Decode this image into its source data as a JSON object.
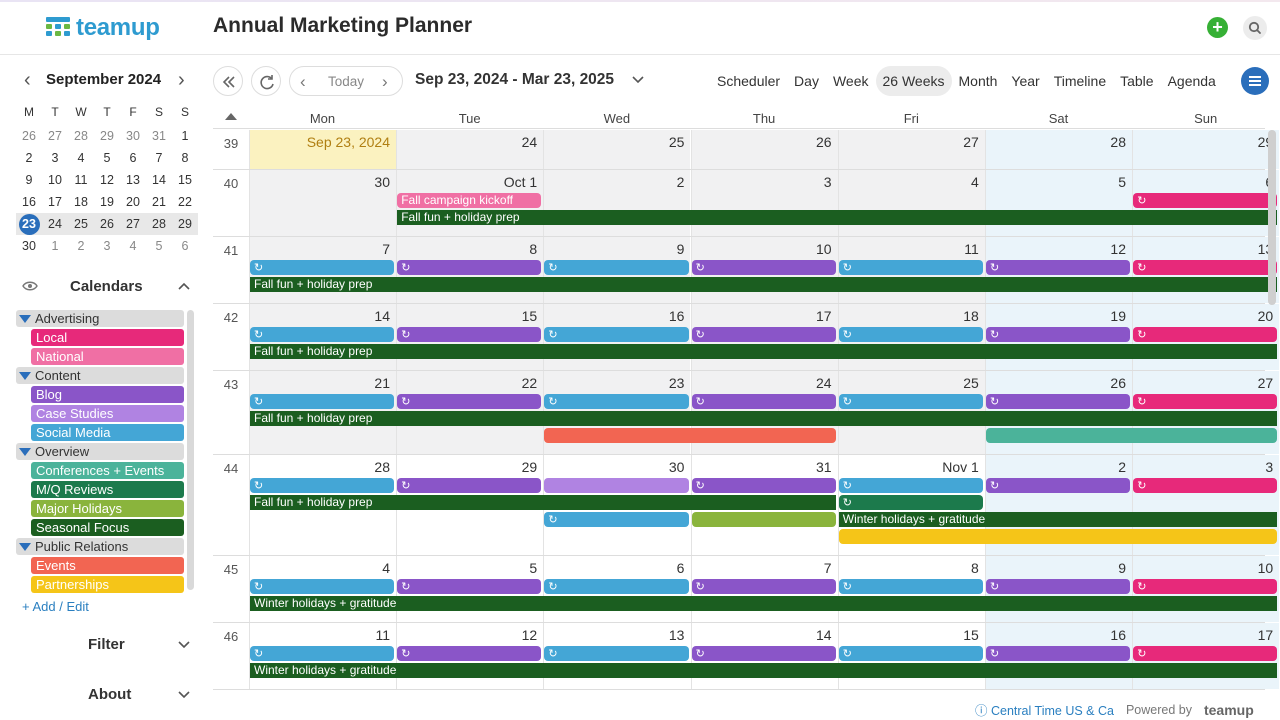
{
  "app": {
    "brand": "teamup",
    "title": "Annual Marketing Planner"
  },
  "sidebar": {
    "month_label": "September 2024",
    "weekday_heads": [
      "M",
      "T",
      "W",
      "T",
      "F",
      "S",
      "S"
    ],
    "weeks": [
      [
        {
          "d": "26"
        },
        {
          "d": "27"
        },
        {
          "d": "28"
        },
        {
          "d": "29"
        },
        {
          "d": "30"
        },
        {
          "d": "31"
        },
        {
          "d": "1"
        }
      ],
      [
        {
          "d": "2"
        },
        {
          "d": "3"
        },
        {
          "d": "4"
        },
        {
          "d": "5"
        },
        {
          "d": "6"
        },
        {
          "d": "7"
        },
        {
          "d": "8"
        }
      ],
      [
        {
          "d": "9"
        },
        {
          "d": "10"
        },
        {
          "d": "11"
        },
        {
          "d": "12"
        },
        {
          "d": "13"
        },
        {
          "d": "14"
        },
        {
          "d": "15"
        }
      ],
      [
        {
          "d": "16"
        },
        {
          "d": "17"
        },
        {
          "d": "18"
        },
        {
          "d": "19"
        },
        {
          "d": "20"
        },
        {
          "d": "21"
        },
        {
          "d": "22"
        }
      ],
      [
        {
          "d": "23"
        },
        {
          "d": "24"
        },
        {
          "d": "25"
        },
        {
          "d": "26"
        },
        {
          "d": "27"
        },
        {
          "d": "28"
        },
        {
          "d": "29"
        }
      ],
      [
        {
          "d": "30"
        },
        {
          "d": "1"
        },
        {
          "d": "2"
        },
        {
          "d": "3"
        },
        {
          "d": "4"
        },
        {
          "d": "5"
        },
        {
          "d": "6"
        }
      ]
    ],
    "today_day": "23",
    "calendars_title": "Calendars",
    "groups": [
      {
        "name": "Advertising",
        "items": [
          {
            "name": "Local",
            "color": "#e7297a"
          },
          {
            "name": "National",
            "color": "#f06fa4"
          }
        ]
      },
      {
        "name": "Content",
        "items": [
          {
            "name": "Blog",
            "color": "#8a55c8"
          },
          {
            "name": "Case Studies",
            "color": "#b083e2"
          },
          {
            "name": "Social Media",
            "color": "#44a6d6"
          }
        ]
      },
      {
        "name": "Overview",
        "items": [
          {
            "name": "Conferences + Events",
            "color": "#4bb39a"
          },
          {
            "name": "M/Q Reviews",
            "color": "#1c7a4c"
          },
          {
            "name": "Major Holidays",
            "color": "#8ab43c"
          },
          {
            "name": "Seasonal Focus",
            "color": "#1b5e20"
          }
        ]
      },
      {
        "name": "Public Relations",
        "items": [
          {
            "name": "Events",
            "color": "#f26552"
          },
          {
            "name": "Partnerships",
            "color": "#f5c518"
          }
        ]
      }
    ],
    "add_edit": "Add / Edit",
    "filter_label": "Filter",
    "about_label": "About"
  },
  "toolbar": {
    "today": "Today",
    "range": "Sep 23, 2024 - Mar 23, 2025",
    "views": [
      "Scheduler",
      "Day",
      "Week",
      "26 Weeks",
      "Month",
      "Year",
      "Timeline",
      "Table",
      "Agenda"
    ],
    "active_view": "26 Weeks"
  },
  "calendar": {
    "day_heads": [
      "Mon",
      "Tue",
      "Wed",
      "Thu",
      "Fri",
      "Sat",
      "Sun"
    ],
    "weeks": [
      {
        "wk": "39",
        "days": [
          "Sep 23, 2024",
          "24",
          "25",
          "26",
          "27",
          "28",
          "29"
        ]
      },
      {
        "wk": "40",
        "days": [
          "30",
          "Oct 1",
          "2",
          "3",
          "4",
          "5",
          "6"
        ]
      },
      {
        "wk": "41",
        "days": [
          "7",
          "8",
          "9",
          "10",
          "11",
          "12",
          "13"
        ]
      },
      {
        "wk": "42",
        "days": [
          "14",
          "15",
          "16",
          "17",
          "18",
          "19",
          "20"
        ]
      },
      {
        "wk": "43",
        "days": [
          "21",
          "22",
          "23",
          "24",
          "25",
          "26",
          "27"
        ]
      },
      {
        "wk": "44",
        "days": [
          "28",
          "29",
          "30",
          "31",
          "Nov 1",
          "2",
          "3"
        ]
      },
      {
        "wk": "45",
        "days": [
          "4",
          "5",
          "6",
          "7",
          "8",
          "9",
          "10"
        ]
      },
      {
        "wk": "46",
        "days": [
          "11",
          "12",
          "13",
          "14",
          "15",
          "16",
          "17"
        ]
      }
    ],
    "events": [
      {
        "week": 1,
        "start": 1,
        "span": 1,
        "lane": 0,
        "title": "Fall campaign kickoff",
        "color": "#f06fa4",
        "repeat": false
      },
      {
        "week": 1,
        "start": 6,
        "span": 1,
        "lane": 0,
        "title": "",
        "color": "#e7297a",
        "repeat": true
      },
      {
        "week": 1,
        "start": 1,
        "span": 6,
        "lane": 1,
        "title": "Fall fun + holiday prep",
        "color": "#1b5e20",
        "repeat": false,
        "bar": true
      },
      {
        "week": 2,
        "start": 0,
        "span": 1,
        "lane": 0,
        "title": "",
        "color": "#44a6d6",
        "repeat": true
      },
      {
        "week": 2,
        "start": 1,
        "span": 1,
        "lane": 0,
        "title": "",
        "color": "#8a55c8",
        "repeat": true
      },
      {
        "week": 2,
        "start": 2,
        "span": 1,
        "lane": 0,
        "title": "",
        "color": "#44a6d6",
        "repeat": true
      },
      {
        "week": 2,
        "start": 3,
        "span": 1,
        "lane": 0,
        "title": "",
        "color": "#8a55c8",
        "repeat": true
      },
      {
        "week": 2,
        "start": 4,
        "span": 1,
        "lane": 0,
        "title": "",
        "color": "#44a6d6",
        "repeat": true
      },
      {
        "week": 2,
        "start": 5,
        "span": 1,
        "lane": 0,
        "title": "",
        "color": "#8a55c8",
        "repeat": true
      },
      {
        "week": 2,
        "start": 6,
        "span": 1,
        "lane": 0,
        "title": "",
        "color": "#e7297a",
        "repeat": true
      },
      {
        "week": 2,
        "start": 0,
        "span": 7,
        "lane": 1,
        "title": "Fall fun + holiday prep",
        "color": "#1b5e20",
        "repeat": false,
        "bar": true
      },
      {
        "week": 3,
        "start": 0,
        "span": 1,
        "lane": 0,
        "title": "",
        "color": "#44a6d6",
        "repeat": true
      },
      {
        "week": 3,
        "start": 1,
        "span": 1,
        "lane": 0,
        "title": "",
        "color": "#8a55c8",
        "repeat": true
      },
      {
        "week": 3,
        "start": 2,
        "span": 1,
        "lane": 0,
        "title": "",
        "color": "#44a6d6",
        "repeat": true
      },
      {
        "week": 3,
        "start": 3,
        "span": 1,
        "lane": 0,
        "title": "",
        "color": "#8a55c8",
        "repeat": true
      },
      {
        "week": 3,
        "start": 4,
        "span": 1,
        "lane": 0,
        "title": "",
        "color": "#44a6d6",
        "repeat": true
      },
      {
        "week": 3,
        "start": 5,
        "span": 1,
        "lane": 0,
        "title": "",
        "color": "#8a55c8",
        "repeat": true
      },
      {
        "week": 3,
        "start": 6,
        "span": 1,
        "lane": 0,
        "title": "",
        "color": "#e7297a",
        "repeat": true
      },
      {
        "week": 3,
        "start": 0,
        "span": 7,
        "lane": 1,
        "title": "Fall fun + holiday prep",
        "color": "#1b5e20",
        "repeat": false,
        "bar": true
      },
      {
        "week": 4,
        "start": 0,
        "span": 1,
        "lane": 0,
        "title": "",
        "color": "#44a6d6",
        "repeat": true
      },
      {
        "week": 4,
        "start": 1,
        "span": 1,
        "lane": 0,
        "title": "",
        "color": "#8a55c8",
        "repeat": true
      },
      {
        "week": 4,
        "start": 2,
        "span": 1,
        "lane": 0,
        "title": "",
        "color": "#44a6d6",
        "repeat": true
      },
      {
        "week": 4,
        "start": 3,
        "span": 1,
        "lane": 0,
        "title": "",
        "color": "#8a55c8",
        "repeat": true
      },
      {
        "week": 4,
        "start": 4,
        "span": 1,
        "lane": 0,
        "title": "",
        "color": "#44a6d6",
        "repeat": true
      },
      {
        "week": 4,
        "start": 5,
        "span": 1,
        "lane": 0,
        "title": "",
        "color": "#8a55c8",
        "repeat": true
      },
      {
        "week": 4,
        "start": 6,
        "span": 1,
        "lane": 0,
        "title": "",
        "color": "#e7297a",
        "repeat": true
      },
      {
        "week": 4,
        "start": 0,
        "span": 7,
        "lane": 1,
        "title": "Fall fun + holiday prep",
        "color": "#1b5e20",
        "repeat": false,
        "bar": true
      },
      {
        "week": 4,
        "start": 2,
        "span": 2,
        "lane": 2,
        "title": "",
        "color": "#f26552",
        "repeat": false
      },
      {
        "week": 4,
        "start": 5,
        "span": 2,
        "lane": 2,
        "title": "",
        "color": "#4bb39a",
        "repeat": false
      },
      {
        "week": 5,
        "start": 0,
        "span": 1,
        "lane": 0,
        "title": "",
        "color": "#44a6d6",
        "repeat": true
      },
      {
        "week": 5,
        "start": 1,
        "span": 1,
        "lane": 0,
        "title": "",
        "color": "#8a55c8",
        "repeat": true
      },
      {
        "week": 5,
        "start": 2,
        "span": 1,
        "lane": 0,
        "title": "",
        "color": "#b083e2",
        "repeat": false
      },
      {
        "week": 5,
        "start": 3,
        "span": 1,
        "lane": 0,
        "title": "",
        "color": "#8a55c8",
        "repeat": true
      },
      {
        "week": 5,
        "start": 4,
        "span": 1,
        "lane": 0,
        "title": "",
        "color": "#44a6d6",
        "repeat": true
      },
      {
        "week": 5,
        "start": 5,
        "span": 1,
        "lane": 0,
        "title": "",
        "color": "#8a55c8",
        "repeat": true
      },
      {
        "week": 5,
        "start": 6,
        "span": 1,
        "lane": 0,
        "title": "",
        "color": "#e7297a",
        "repeat": true
      },
      {
        "week": 5,
        "start": 0,
        "span": 4,
        "lane": 1,
        "title": "Fall fun + holiday prep",
        "color": "#1b5e20",
        "repeat": false,
        "bar": true
      },
      {
        "week": 5,
        "start": 4,
        "span": 1,
        "lane": 1,
        "title": "",
        "color": "#1c7a4c",
        "repeat": true
      },
      {
        "week": 5,
        "start": 2,
        "span": 1,
        "lane": 2,
        "title": "",
        "color": "#44a6d6",
        "repeat": true
      },
      {
        "week": 5,
        "start": 3,
        "span": 1,
        "lane": 2,
        "title": "",
        "color": "#8ab43c",
        "repeat": false
      },
      {
        "week": 5,
        "start": 4,
        "span": 3,
        "lane": 2,
        "title": "Winter holidays + gratitude",
        "color": "#1b5e20",
        "repeat": false,
        "bar": true
      },
      {
        "week": 5,
        "start": 4,
        "span": 3,
        "lane": 3,
        "title": "",
        "color": "#f5c518",
        "repeat": false
      },
      {
        "week": 6,
        "start": 0,
        "span": 1,
        "lane": 0,
        "title": "",
        "color": "#44a6d6",
        "repeat": true
      },
      {
        "week": 6,
        "start": 1,
        "span": 1,
        "lane": 0,
        "title": "",
        "color": "#8a55c8",
        "repeat": true
      },
      {
        "week": 6,
        "start": 2,
        "span": 1,
        "lane": 0,
        "title": "",
        "color": "#44a6d6",
        "repeat": true
      },
      {
        "week": 6,
        "start": 3,
        "span": 1,
        "lane": 0,
        "title": "",
        "color": "#8a55c8",
        "repeat": true
      },
      {
        "week": 6,
        "start": 4,
        "span": 1,
        "lane": 0,
        "title": "",
        "color": "#44a6d6",
        "repeat": true
      },
      {
        "week": 6,
        "start": 5,
        "span": 1,
        "lane": 0,
        "title": "",
        "color": "#8a55c8",
        "repeat": true
      },
      {
        "week": 6,
        "start": 6,
        "span": 1,
        "lane": 0,
        "title": "",
        "color": "#e7297a",
        "repeat": true
      },
      {
        "week": 6,
        "start": 0,
        "span": 7,
        "lane": 1,
        "title": "Winter holidays + gratitude",
        "color": "#1b5e20",
        "repeat": false,
        "bar": true
      },
      {
        "week": 7,
        "start": 0,
        "span": 1,
        "lane": 0,
        "title": "",
        "color": "#44a6d6",
        "repeat": true
      },
      {
        "week": 7,
        "start": 1,
        "span": 1,
        "lane": 0,
        "title": "",
        "color": "#8a55c8",
        "repeat": true
      },
      {
        "week": 7,
        "start": 2,
        "span": 1,
        "lane": 0,
        "title": "",
        "color": "#44a6d6",
        "repeat": true
      },
      {
        "week": 7,
        "start": 3,
        "span": 1,
        "lane": 0,
        "title": "",
        "color": "#8a55c8",
        "repeat": true
      },
      {
        "week": 7,
        "start": 4,
        "span": 1,
        "lane": 0,
        "title": "",
        "color": "#44a6d6",
        "repeat": true
      },
      {
        "week": 7,
        "start": 5,
        "span": 1,
        "lane": 0,
        "title": "",
        "color": "#8a55c8",
        "repeat": true
      },
      {
        "week": 7,
        "start": 6,
        "span": 1,
        "lane": 0,
        "title": "",
        "color": "#e7297a",
        "repeat": true
      },
      {
        "week": 7,
        "start": 0,
        "span": 7,
        "lane": 1,
        "title": "Winter holidays + gratitude",
        "color": "#1b5e20",
        "repeat": false,
        "bar": true
      }
    ]
  },
  "footer": {
    "timezone": "Central Time US & Ca",
    "powered": "Powered by",
    "brand": "teamup"
  }
}
